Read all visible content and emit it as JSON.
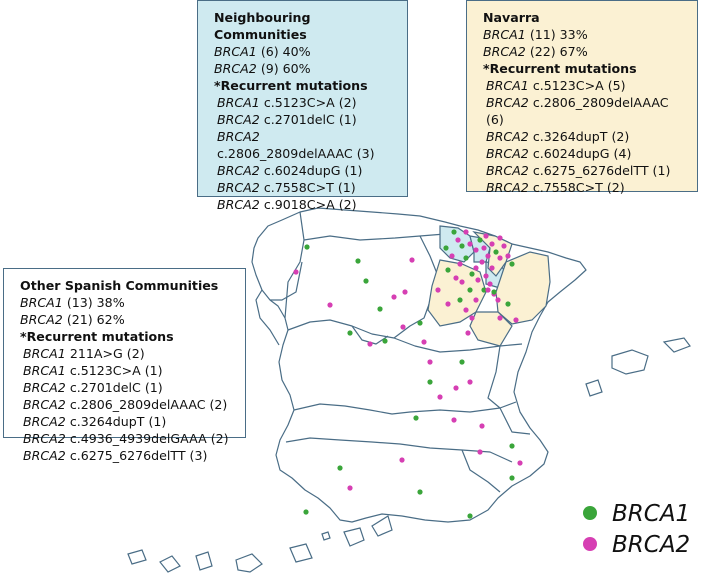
{
  "boxes": {
    "neighbouring": {
      "title": "Neighbouring Communities",
      "summary": [
        {
          "gene": "BRCA1",
          "text": " (6) 40%"
        },
        {
          "gene": "BRCA2",
          "text": " (9) 60%"
        }
      ],
      "recurrent_heading": "*Recurrent mutations",
      "mutations": [
        {
          "gene": "BRCA1",
          "text": " c.5123C>A (2)"
        },
        {
          "gene": "BRCA2",
          "text": " c.2701delC (1)"
        },
        {
          "gene": "BRCA2",
          "text": " c.2806_2809delAAAC (3)"
        },
        {
          "gene": "BRCA2",
          "text": " c.6024dupG (1)"
        },
        {
          "gene": "BRCA2",
          "text": " c.7558C>T (1)"
        },
        {
          "gene": "BRCA2",
          "text": " c.9018C>A (2)"
        }
      ]
    },
    "navarra": {
      "title": "Navarra",
      "summary": [
        {
          "gene": "BRCA1",
          "text": " (11) 33%"
        },
        {
          "gene": "BRCA2",
          "text": " (22) 67%"
        }
      ],
      "recurrent_heading": "*Recurrent mutations",
      "mutations": [
        {
          "gene": "BRCA1",
          "text": " c.5123C>A (5)"
        },
        {
          "gene": "BRCA2",
          "text": " c.2806_2809delAAAC (6)"
        },
        {
          "gene": "BRCA2",
          "text": " c.3264dupT (2)"
        },
        {
          "gene": "BRCA2",
          "text": " c.6024dupG (4)"
        },
        {
          "gene": "BRCA2",
          "text": " c.6275_6276delTT (1)"
        },
        {
          "gene": "BRCA2",
          "text": " c.7558C>T (2)"
        }
      ]
    },
    "other": {
      "title": "Other Spanish Communities",
      "summary": [
        {
          "gene": "BRCA1",
          "text": " (13) 38%"
        },
        {
          "gene": "BRCA2",
          "text": " (21) 62%"
        }
      ],
      "recurrent_heading": "*Recurrent mutations",
      "mutations": [
        {
          "gene": "BRCA1",
          "text": " 211A>G (2)"
        },
        {
          "gene": "BRCA1",
          "text": " c.5123C>A (1)"
        },
        {
          "gene": "BRCA2",
          "text": " c.2701delC (1)"
        },
        {
          "gene": "BRCA2",
          "text": " c.2806_2809delAAAC (2)"
        },
        {
          "gene": "BRCA2",
          "text": " c.3264dupT (1)"
        },
        {
          "gene": "BRCA2",
          "text": " c.4936_4939delGAAA (2)"
        },
        {
          "gene": "BRCA2",
          "text": " c.6275_6276delTT (3)"
        }
      ]
    }
  },
  "legend": [
    {
      "label": "BRCA1",
      "color": "#3aa53a"
    },
    {
      "label": "BRCA2",
      "color": "#d63fb3"
    }
  ],
  "colors": {
    "neighbouring_fill": "#cfeaf0",
    "navarra_fill": "#fbf1d3",
    "map_outline": "#4a6d86"
  }
}
